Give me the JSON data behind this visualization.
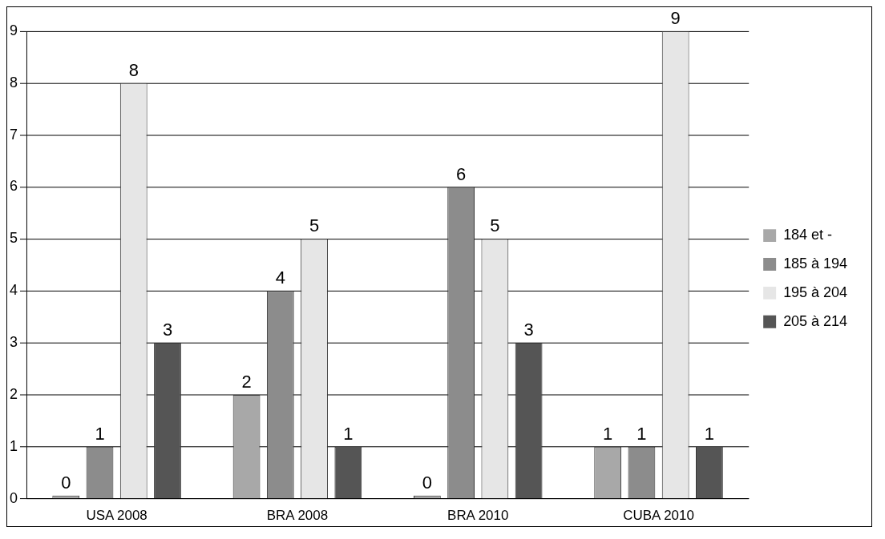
{
  "chart_data": {
    "type": "bar",
    "categories": [
      "USA 2008",
      "BRA 2008",
      "BRA 2010",
      "CUBA 2010"
    ],
    "series": [
      {
        "name": "184 et -",
        "color": "#a8a8a8",
        "values": [
          0,
          2,
          0,
          1
        ]
      },
      {
        "name": "185 à 194",
        "color": "#8c8c8c",
        "values": [
          1,
          4,
          6,
          1
        ]
      },
      {
        "name": "195 à 204",
        "color": "#e6e6e6",
        "values": [
          8,
          5,
          5,
          9
        ]
      },
      {
        "name": "205 à 214",
        "color": "#555555",
        "values": [
          3,
          1,
          3,
          1
        ]
      }
    ],
    "ylim": [
      0,
      9
    ],
    "yticks": [
      0,
      1,
      2,
      3,
      4,
      5,
      6,
      7,
      8,
      9
    ],
    "grid": "y",
    "legend": "right",
    "data_labels": true
  }
}
